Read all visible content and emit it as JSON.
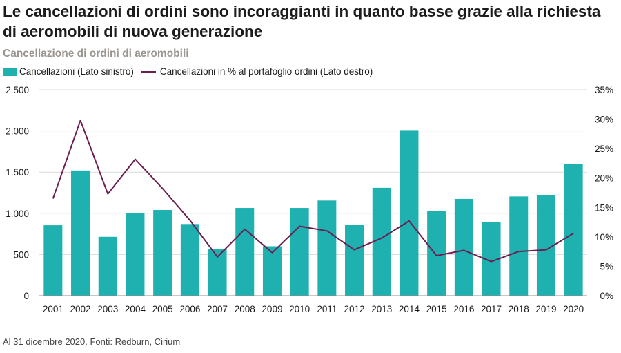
{
  "header": {
    "title": "Le cancellazioni di ordini sono incoraggianti in quanto basse grazie alla richiesta di aeromobili di nuova generazione",
    "subtitle": "Cancellazione di ordini di aeromobili"
  },
  "footnote": "Al 31 dicembre 2020. Fonti: Redburn, Cirium",
  "colors": {
    "bar": "#1eb1b0",
    "line": "#6b1e4f",
    "grid": "#d9d9d9"
  },
  "chart_data": {
    "type": "bar",
    "title": "Cancellazione di ordini di aeromobili",
    "categories": [
      "2001",
      "2002",
      "2003",
      "2004",
      "2005",
      "2006",
      "2007",
      "2008",
      "2009",
      "2010",
      "2011",
      "2012",
      "2013",
      "2014",
      "2015",
      "2016",
      "2017",
      "2018",
      "2019",
      "2020"
    ],
    "series": [
      {
        "name": "Cancellazioni (Lato sinistro)",
        "type": "bar",
        "axis": "left",
        "values": [
          855,
          1520,
          715,
          1005,
          1040,
          870,
          565,
          1065,
          600,
          1065,
          1155,
          860,
          1310,
          2010,
          1025,
          1175,
          895,
          1205,
          1225,
          1595
        ]
      },
      {
        "name": "Cancellazioni in % al portafoglio ordini (Lato destro)",
        "type": "line",
        "axis": "right",
        "values": [
          16.5,
          29.8,
          17.3,
          23.2,
          18.2,
          12.8,
          6.6,
          11.3,
          7.3,
          11.8,
          11.0,
          7.8,
          9.8,
          12.7,
          6.8,
          7.7,
          5.8,
          7.5,
          7.8,
          10.6
        ]
      }
    ],
    "y_left": {
      "min": 0,
      "max": 2500,
      "ticks": [
        0,
        500,
        1000,
        1500,
        2000,
        2500
      ],
      "tick_labels": [
        "0",
        "500",
        "1.000",
        "1.500",
        "2.000",
        "2.500"
      ]
    },
    "y_right": {
      "min": 0,
      "max": 35,
      "ticks": [
        0,
        5,
        10,
        15,
        20,
        25,
        30,
        35
      ],
      "tick_labels": [
        "0%",
        "5%",
        "10%",
        "15%",
        "20%",
        "25%",
        "30%",
        "35%"
      ]
    },
    "grid": true,
    "legend_position": "top-left"
  }
}
